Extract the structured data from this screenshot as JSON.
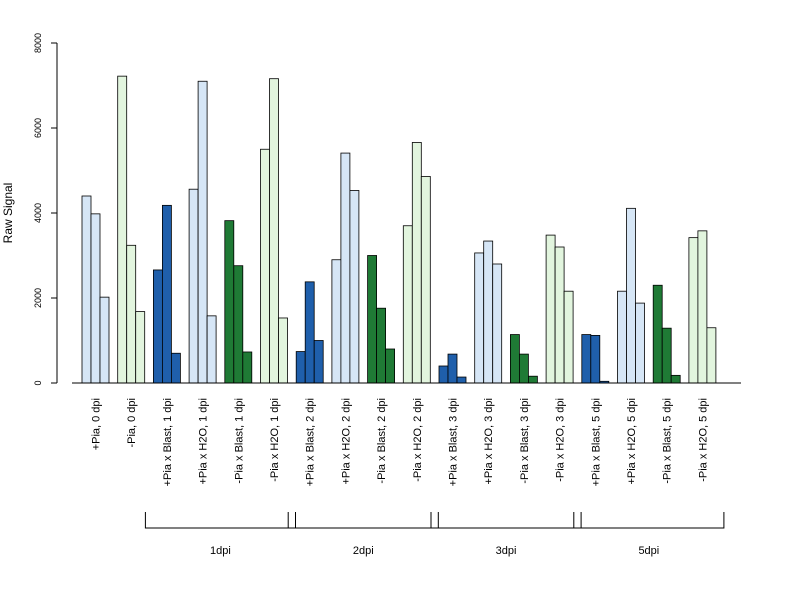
{
  "chart_data": {
    "type": "bar",
    "ylabel": "Raw Signal",
    "ylim": [
      0,
      8000
    ],
    "yticks": [
      0,
      2000,
      4000,
      6000,
      8000
    ],
    "categories": [
      "+Pia, 0 dpi",
      "-Pia, 0 dpi",
      "+Pia x Blast, 1 dpi",
      "+Pia x H2O, 1 dpi",
      "-Pia x Blast, 1 dpi",
      "-Pia x H2O, 1 dpi",
      "+Pia x Blast, 2 dpi",
      "+Pia x H2O, 2 dpi",
      "-Pia x Blast, 2 dpi",
      "-Pia x H2O, 2 dpi",
      "+Pia x Blast, 3 dpi",
      "+Pia x H2O, 3 dpi",
      "-Pia x Blast, 3 dpi",
      "-Pia x H2O, 3 dpi",
      "+Pia x Blast, 5 dpi",
      "+Pia x H2O, 5 dpi",
      "-Pia x Blast, 5 dpi",
      "-Pia x H2O, 5 dpi"
    ],
    "category_colors": [
      "#d6e6f6",
      "#e2f5de",
      "#1f5fab",
      "#d6e6f6",
      "#1f7a35",
      "#e2f5de",
      "#1f5fab",
      "#d6e6f6",
      "#1f7a35",
      "#e2f5de",
      "#1f5fab",
      "#d6e6f6",
      "#1f7a35",
      "#e2f5de",
      "#1f5fab",
      "#d6e6f6",
      "#1f7a35",
      "#e2f5de"
    ],
    "values": [
      [
        4400,
        3980,
        2020
      ],
      [
        7220,
        3240,
        1680
      ],
      [
        2660,
        4180,
        700
      ],
      [
        4560,
        7100,
        1580
      ],
      [
        3820,
        2760,
        730
      ],
      [
        5500,
        7160,
        1530
      ],
      [
        740,
        2380,
        1000
      ],
      [
        2900,
        5410,
        4530
      ],
      [
        3000,
        1760,
        800
      ],
      [
        3700,
        5660,
        4860
      ],
      [
        400,
        680,
        140
      ],
      [
        3060,
        3340,
        2800
      ],
      [
        1140,
        680,
        160
      ],
      [
        3480,
        3200,
        2160
      ],
      [
        1140,
        1120,
        40
      ],
      [
        2160,
        4110,
        1880
      ],
      [
        2300,
        1290,
        180
      ],
      [
        3420,
        3580,
        1300
      ]
    ],
    "groups": [
      {
        "label": "1dpi",
        "from": 2,
        "to": 5
      },
      {
        "label": "2dpi",
        "from": 6,
        "to": 9
      },
      {
        "label": "3dpi",
        "from": 10,
        "to": 13
      },
      {
        "label": "5dpi",
        "from": 14,
        "to": 17
      }
    ],
    "grid": false,
    "legend": "none"
  }
}
